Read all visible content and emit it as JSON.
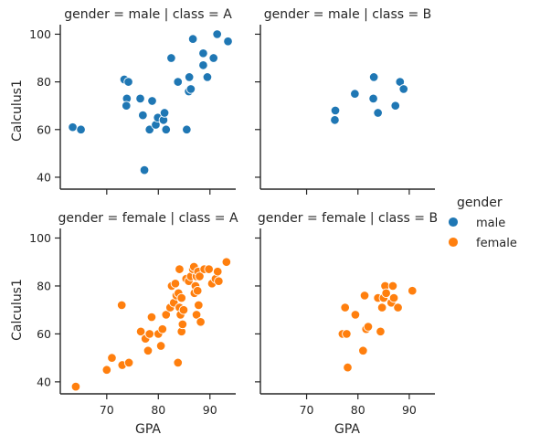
{
  "chart_data": {
    "type": "scatter",
    "xlabel": "GPA",
    "ylabel": "Calculus1",
    "xlim": [
      61,
      95
    ],
    "ylim": [
      35,
      104
    ],
    "xticks": [
      70,
      80,
      90
    ],
    "yticks": [
      40,
      60,
      80,
      100
    ],
    "legend": {
      "title": "gender",
      "placement": "right",
      "entries": [
        {
          "label": "male",
          "color": "#1f77b4"
        },
        {
          "label": "female",
          "color": "#ff7f0e"
        }
      ]
    },
    "panels": [
      {
        "title": "gender = male | class = A",
        "gender": "male",
        "color": "#1f77b4",
        "points": [
          [
            63.4,
            61
          ],
          [
            65.0,
            60
          ],
          [
            73.4,
            81
          ],
          [
            74.2,
            80
          ],
          [
            73.9,
            73
          ],
          [
            73.8,
            70
          ],
          [
            76.5,
            73
          ],
          [
            77.0,
            66
          ],
          [
            77.3,
            43
          ],
          [
            78.3,
            60
          ],
          [
            78.8,
            72
          ],
          [
            79.5,
            62
          ],
          [
            79.9,
            65
          ],
          [
            81.0,
            64
          ],
          [
            81.2,
            67
          ],
          [
            81.5,
            60
          ],
          [
            82.5,
            90
          ],
          [
            83.8,
            80
          ],
          [
            85.5,
            60
          ],
          [
            86.0,
            82
          ],
          [
            85.9,
            76
          ],
          [
            86.3,
            77
          ],
          [
            86.7,
            98
          ],
          [
            88.7,
            92
          ],
          [
            88.7,
            87
          ],
          [
            89.5,
            82
          ],
          [
            90.7,
            90
          ],
          [
            91.4,
            100
          ],
          [
            93.5,
            97
          ]
        ]
      },
      {
        "title": "gender = male | class = B",
        "gender": "male",
        "color": "#1f77b4",
        "points": [
          [
            75.6,
            68
          ],
          [
            75.5,
            64
          ],
          [
            79.4,
            75
          ],
          [
            83.1,
            82
          ],
          [
            83.0,
            73
          ],
          [
            83.9,
            67
          ],
          [
            87.3,
            70
          ],
          [
            88.2,
            80
          ],
          [
            88.9,
            77
          ]
        ]
      },
      {
        "title": "gender = female | class = A",
        "gender": "female",
        "color": "#ff7f0e",
        "points": [
          [
            64.0,
            38
          ],
          [
            70.0,
            45
          ],
          [
            71.0,
            50
          ],
          [
            72.9,
            72
          ],
          [
            73.0,
            47
          ],
          [
            74.3,
            48
          ],
          [
            76.6,
            61
          ],
          [
            77.5,
            58
          ],
          [
            78.0,
            53
          ],
          [
            78.3,
            60
          ],
          [
            78.7,
            67
          ],
          [
            80.0,
            60
          ],
          [
            80.5,
            55
          ],
          [
            80.8,
            62
          ],
          [
            81.5,
            68
          ],
          [
            82.3,
            71
          ],
          [
            82.6,
            80
          ],
          [
            83.0,
            73
          ],
          [
            83.3,
            81
          ],
          [
            83.5,
            76
          ],
          [
            83.9,
            77
          ],
          [
            83.8,
            48
          ],
          [
            84.1,
            87
          ],
          [
            84.1,
            71
          ],
          [
            84.3,
            68
          ],
          [
            84.5,
            61
          ],
          [
            84.5,
            75
          ],
          [
            84.7,
            64
          ],
          [
            84.9,
            70
          ],
          [
            85.4,
            83
          ],
          [
            85.9,
            82
          ],
          [
            86.3,
            84
          ],
          [
            86.7,
            87
          ],
          [
            86.7,
            87
          ],
          [
            86.9,
            88
          ],
          [
            87.0,
            77
          ],
          [
            87.2,
            80
          ],
          [
            87.4,
            84
          ],
          [
            87.4,
            68
          ],
          [
            87.7,
            86
          ],
          [
            87.6,
            78
          ],
          [
            87.8,
            72
          ],
          [
            88.0,
            84
          ],
          [
            88.2,
            65
          ],
          [
            88.9,
            87
          ],
          [
            89.8,
            87
          ],
          [
            90.4,
            81
          ],
          [
            91.1,
            83
          ],
          [
            91.5,
            86
          ],
          [
            91.7,
            82
          ],
          [
            93.2,
            90
          ]
        ]
      },
      {
        "title": "gender = female | class = B",
        "gender": "female",
        "color": "#ff7f0e",
        "points": [
          [
            77.0,
            60
          ],
          [
            77.5,
            71
          ],
          [
            77.8,
            60
          ],
          [
            78.0,
            46
          ],
          [
            79.5,
            68
          ],
          [
            81.0,
            53
          ],
          [
            81.3,
            76
          ],
          [
            81.6,
            62
          ],
          [
            82.0,
            63
          ],
          [
            83.9,
            75
          ],
          [
            84.4,
            61
          ],
          [
            84.7,
            71
          ],
          [
            85.0,
            75
          ],
          [
            85.3,
            80
          ],
          [
            85.5,
            77
          ],
          [
            86.5,
            73
          ],
          [
            86.8,
            80
          ],
          [
            87.0,
            75
          ],
          [
            87.8,
            71
          ],
          [
            90.6,
            78
          ]
        ]
      }
    ]
  }
}
